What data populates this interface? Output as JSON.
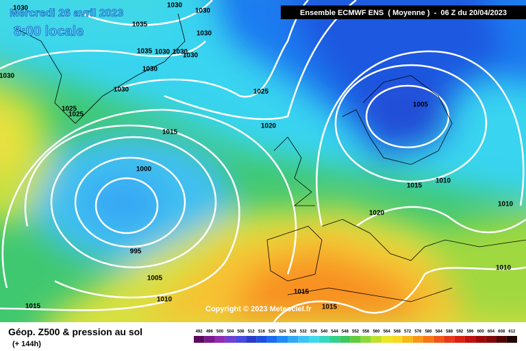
{
  "header": {
    "date": "Mercredi 26 avril 2023",
    "time": "8:00 locale",
    "model": "Ensemble ECMWF ENS  ( Moyenne )  -  06 Z du 20/04/2023"
  },
  "copyright": "Copyright © 2023 Meteociel.fr",
  "footer": {
    "title": "Géop. Z500 & pression au sol",
    "lead": "(+ 144h)"
  },
  "isobar_labels": [
    "1030",
    "1030",
    "1030",
    "1035",
    "1030",
    "1035",
    "1030",
    "1030",
    "1030",
    "1030",
    "1030",
    "1030",
    "1025",
    "1025",
    "1025",
    "1005",
    "1020",
    "1015",
    "1000",
    "1015",
    "1010",
    "1010",
    "1020",
    "995",
    "1005",
    "1010",
    "1010",
    "1015",
    "1015",
    "1015"
  ],
  "colorbar": {
    "labels": [
      492,
      496,
      500,
      504,
      508,
      512,
      516,
      520,
      524,
      528,
      532,
      536,
      540,
      544,
      548,
      552,
      556,
      560,
      564,
      568,
      572,
      576,
      580,
      584,
      588,
      592,
      596,
      600,
      604,
      608,
      612
    ],
    "colors": [
      "#5c0a5c",
      "#7a1a8a",
      "#8e2cb4",
      "#7040d0",
      "#4a4ae0",
      "#2a3cc8",
      "#1e50e0",
      "#1a6cf0",
      "#1e8cf4",
      "#30a8f4",
      "#3cc4f4",
      "#40d8ec",
      "#38d8c0",
      "#34d090",
      "#40c860",
      "#60cc40",
      "#90d838",
      "#c0e030",
      "#e8e828",
      "#f8d820",
      "#f8b818",
      "#f89818",
      "#f87818",
      "#f05818",
      "#e83818",
      "#d82010",
      "#c01010",
      "#a00808",
      "#800808",
      "#500404",
      "#200000"
    ]
  }
}
